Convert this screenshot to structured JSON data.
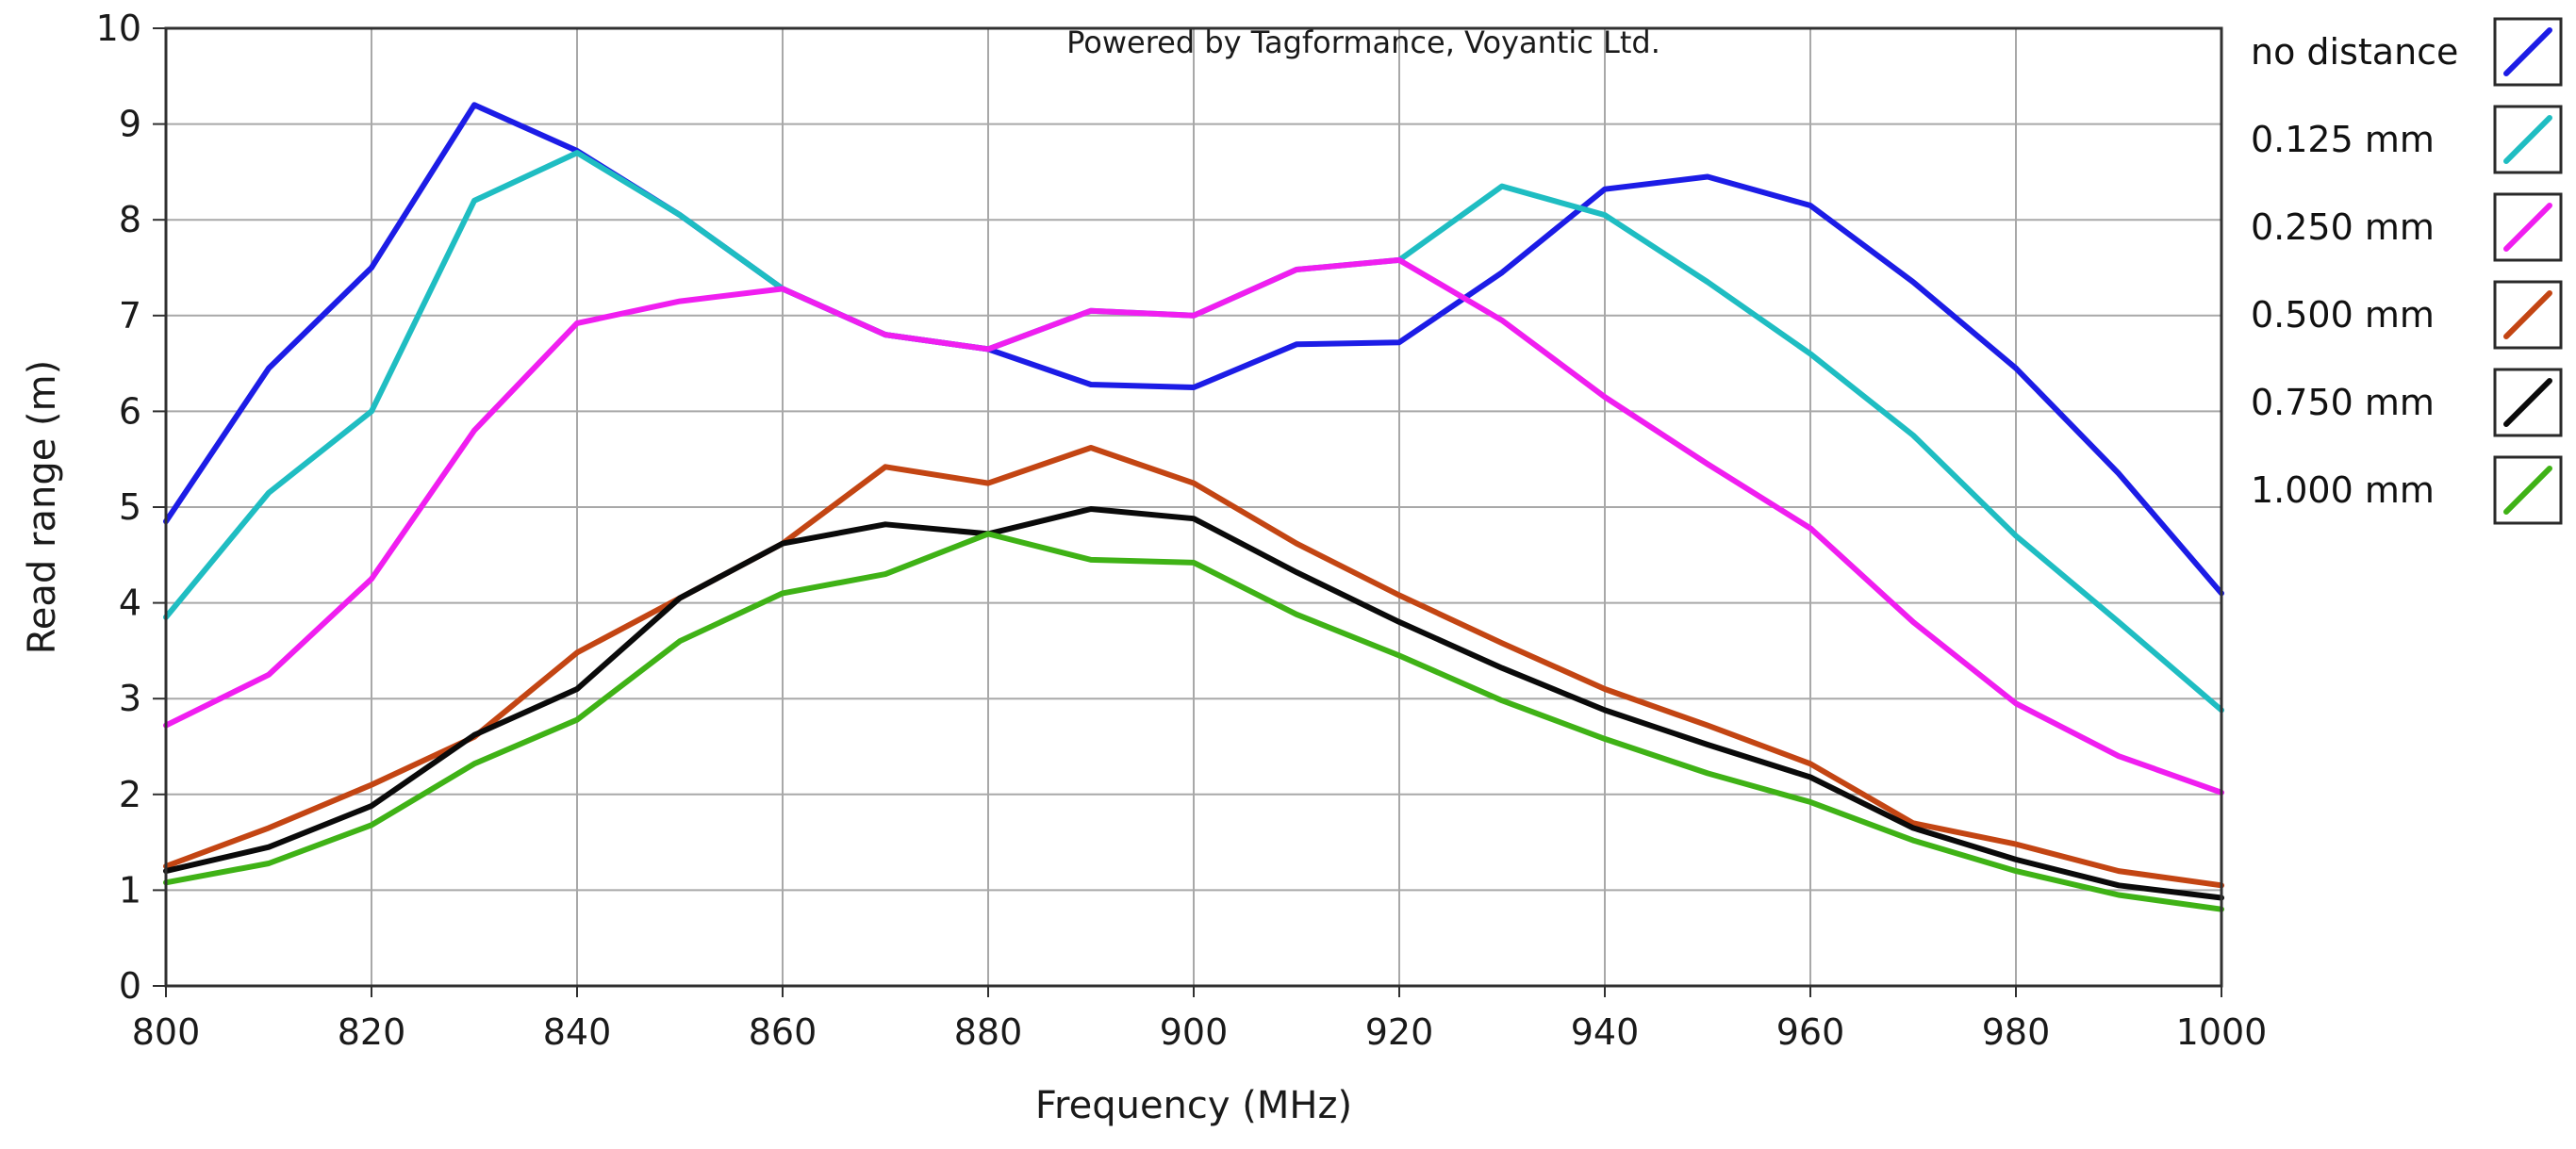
{
  "chart_data": {
    "type": "line",
    "title": "",
    "credit": "Powered by Tagformance, Voyantic Ltd.",
    "xlabel": "Frequency (MHz)",
    "ylabel": "Read range (m)",
    "xlim": [
      800,
      1000
    ],
    "ylim": [
      0,
      10
    ],
    "xticks": [
      800,
      820,
      840,
      860,
      880,
      900,
      920,
      940,
      960,
      980,
      1000
    ],
    "yticks": [
      0,
      1,
      2,
      3,
      4,
      5,
      6,
      7,
      8,
      9,
      10
    ],
    "grid": true,
    "legend_position": "right",
    "x": [
      800,
      810,
      820,
      830,
      840,
      850,
      860,
      870,
      880,
      890,
      900,
      910,
      920,
      930,
      940,
      950,
      960,
      970,
      980,
      990,
      1000
    ],
    "series": [
      {
        "name": "no distance",
        "color": "#1c1ce6",
        "values": [
          4.85,
          6.45,
          7.5,
          9.2,
          8.72,
          8.05,
          7.28,
          6.8,
          6.65,
          6.28,
          6.25,
          6.7,
          6.72,
          7.45,
          8.32,
          8.45,
          8.15,
          7.35,
          6.45,
          5.35,
          4.1
        ]
      },
      {
        "name": "0.125 mm",
        "color": "#1fbdc2",
        "values": [
          3.85,
          5.15,
          6.0,
          8.2,
          8.7,
          8.05,
          7.28,
          6.8,
          6.65,
          7.05,
          7.0,
          7.48,
          7.58,
          8.35,
          8.05,
          7.35,
          6.6,
          5.75,
          4.7,
          3.8,
          2.88
        ]
      },
      {
        "name": "0.250 mm",
        "color": "#f01ef0",
        "values": [
          2.72,
          3.25,
          4.25,
          5.8,
          6.92,
          7.15,
          7.28,
          6.8,
          6.65,
          7.05,
          7.0,
          7.48,
          7.58,
          6.95,
          6.15,
          5.45,
          4.78,
          3.8,
          2.95,
          2.4,
          2.02
        ]
      },
      {
        "name": "0.500 mm",
        "color": "#c34513",
        "values": [
          1.25,
          1.65,
          2.1,
          2.6,
          3.48,
          4.05,
          4.62,
          5.42,
          5.25,
          5.62,
          5.25,
          4.62,
          4.08,
          3.58,
          3.1,
          2.72,
          2.32,
          1.7,
          1.48,
          1.2,
          1.05
        ]
      },
      {
        "name": "0.750 mm",
        "color": "#0a0a0a",
        "values": [
          1.2,
          1.45,
          1.88,
          2.62,
          3.1,
          4.05,
          4.62,
          4.82,
          4.72,
          4.98,
          4.88,
          4.32,
          3.8,
          3.32,
          2.88,
          2.52,
          2.18,
          1.65,
          1.32,
          1.05,
          0.92
        ]
      },
      {
        "name": "1.000 mm",
        "color": "#3fb216",
        "values": [
          1.08,
          1.28,
          1.68,
          2.32,
          2.78,
          3.6,
          4.1,
          4.3,
          4.72,
          4.45,
          4.42,
          3.88,
          3.45,
          2.98,
          2.58,
          2.22,
          1.92,
          1.52,
          1.2,
          0.95,
          0.8
        ]
      }
    ]
  }
}
